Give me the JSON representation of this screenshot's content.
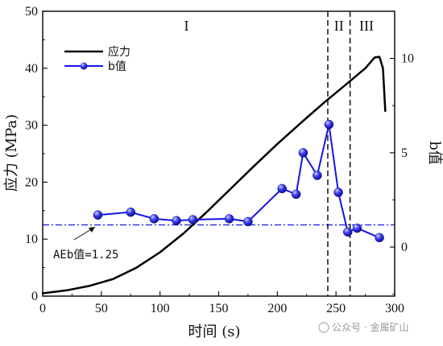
{
  "chart_data": {
    "type": "line",
    "x_axis": {
      "label": "时间 (s)",
      "lim": [
        0,
        300
      ],
      "ticks": [
        0,
        50,
        100,
        150,
        200,
        250,
        300
      ]
    },
    "y_left": {
      "label": "应力 (MPa)",
      "lim": [
        0,
        50
      ],
      "ticks": [
        0,
        10,
        20,
        30,
        40,
        50
      ]
    },
    "y_right": {
      "label": "b值",
      "lim": [
        -2.6,
        12.5
      ],
      "ticks": [
        0,
        5,
        10
      ]
    },
    "legend": {
      "position": "top-left",
      "entries": [
        {
          "label": "应力",
          "color": "#000000"
        },
        {
          "label": "b值",
          "color": "#1515e6"
        }
      ]
    },
    "series": [
      {
        "name": "应力",
        "axis": "left",
        "color": "#000000",
        "points": [
          [
            0,
            0.5
          ],
          [
            20,
            1.0
          ],
          [
            40,
            1.8
          ],
          [
            60,
            3.0
          ],
          [
            80,
            5.0
          ],
          [
            100,
            7.7
          ],
          [
            120,
            11.0
          ],
          [
            140,
            14.8
          ],
          [
            160,
            18.8
          ],
          [
            180,
            22.8
          ],
          [
            200,
            26.7
          ],
          [
            220,
            30.4
          ],
          [
            240,
            34.0
          ],
          [
            260,
            37.4
          ],
          [
            275,
            40.0
          ],
          [
            283,
            41.9
          ],
          [
            287,
            42.0
          ],
          [
            290,
            40.0
          ],
          [
            292,
            32.5
          ]
        ]
      },
      {
        "name": "b值",
        "axis": "right",
        "color": "#1515e6",
        "points": [
          [
            47,
            1.7
          ],
          [
            75,
            1.85
          ],
          [
            95,
            1.5
          ],
          [
            114,
            1.4
          ],
          [
            128,
            1.45
          ],
          [
            159,
            1.5
          ],
          [
            175,
            1.35
          ],
          [
            204,
            3.1
          ],
          [
            216,
            2.8
          ],
          [
            222,
            5.0
          ],
          [
            234,
            3.8
          ],
          [
            244,
            6.5
          ],
          [
            252,
            2.9
          ],
          [
            260,
            0.8
          ],
          [
            268,
            1.0
          ],
          [
            287,
            0.5
          ]
        ]
      }
    ],
    "reference_lines": [
      {
        "orientation": "horizontal",
        "axis": "left",
        "value": 12.5,
        "color": "#1515e6",
        "style": "dash-dot"
      },
      {
        "orientation": "vertical",
        "value": 243,
        "color": "#000000",
        "style": "dashed"
      },
      {
        "orientation": "vertical",
        "value": 262,
        "color": "#000000",
        "style": "dashed"
      }
    ],
    "annotations": [
      {
        "text": "AEb值=1.25"
      }
    ],
    "stage_labels": [
      "I",
      "II",
      "III"
    ],
    "grid": false
  },
  "watermark": "公众号 · 金属矿山"
}
